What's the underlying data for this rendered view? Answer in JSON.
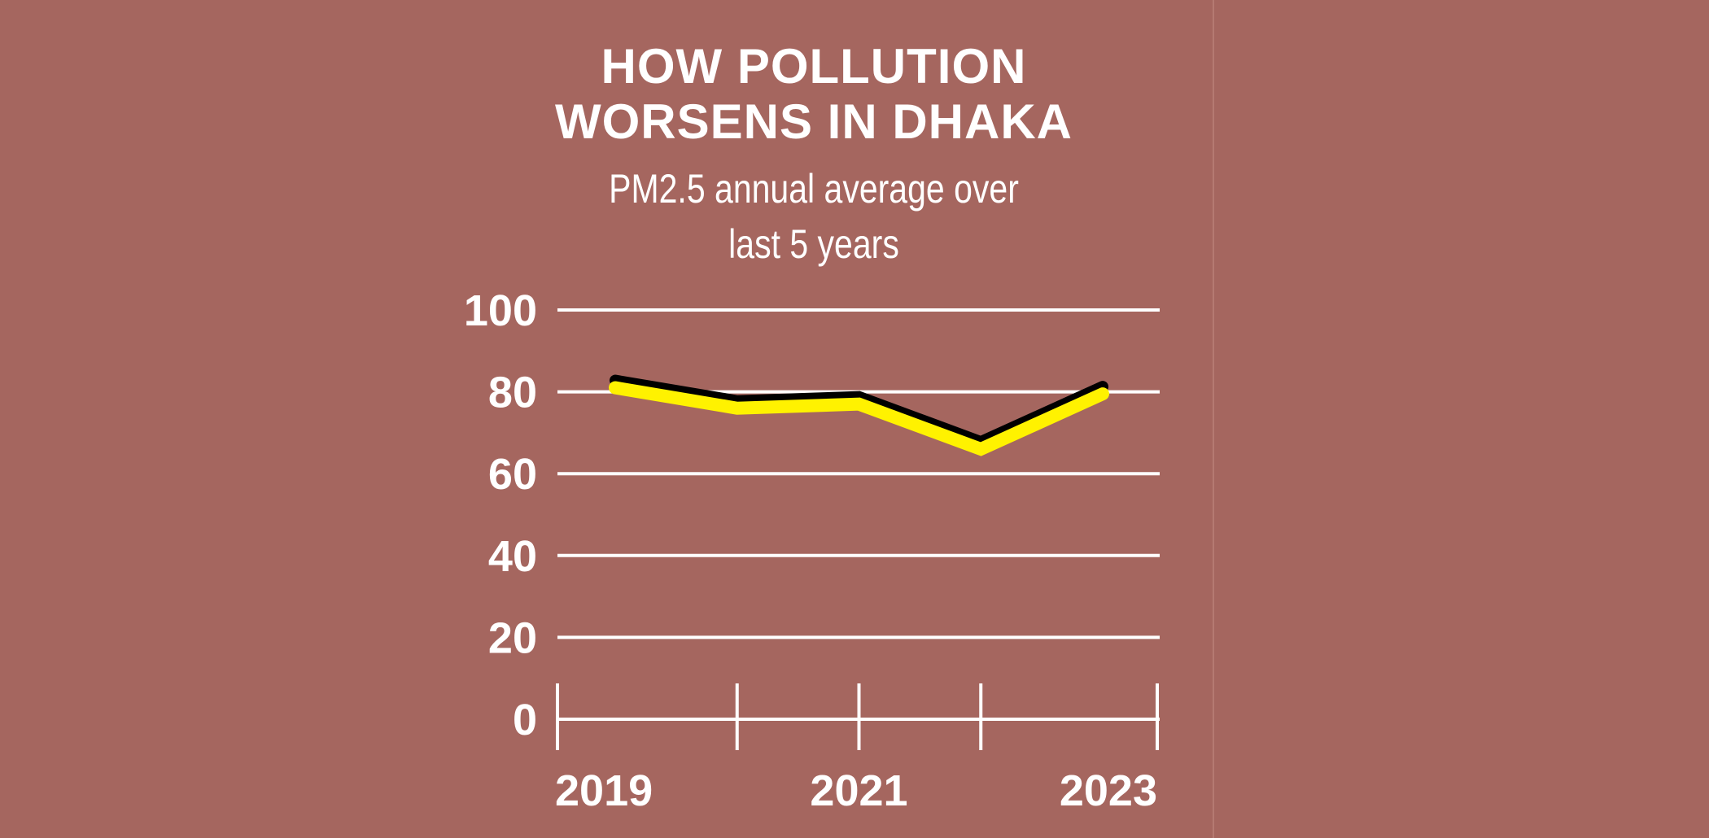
{
  "chart_data": {
    "type": "line",
    "title": "HOW POLLUTION\nWORSENS IN DHAKA",
    "subtitle": "PM2.5 annual average over\nlast 5 years",
    "xlabel": "",
    "ylabel": "",
    "x": [
      2019,
      2020,
      2021,
      2022,
      2023
    ],
    "x_tick_labels": [
      "2019",
      "2021",
      "2023"
    ],
    "x_tick_values": [
      2019,
      2021,
      2023
    ],
    "y_ticks": [
      0,
      20,
      40,
      60,
      80,
      100
    ],
    "ylim": [
      0,
      100
    ],
    "xlim": [
      2019,
      2023
    ],
    "series": [
      {
        "values": [
          81,
          76,
          77,
          66,
          79.5
        ]
      }
    ],
    "grid": true,
    "colors": {
      "background": "#a5665f",
      "line": "#fff200",
      "line_shadow": "#000000",
      "grid": "#ffffff",
      "text": "#ffffff"
    }
  }
}
